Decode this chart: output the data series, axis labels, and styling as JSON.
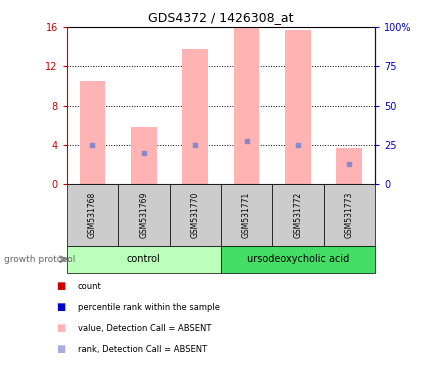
{
  "title": "GDS4372 / 1426308_at",
  "samples": [
    "GSM531768",
    "GSM531769",
    "GSM531770",
    "GSM531771",
    "GSM531772",
    "GSM531773"
  ],
  "bar_values": [
    10.5,
    5.8,
    13.8,
    16.0,
    15.7,
    3.7
  ],
  "dot_values": [
    4.0,
    3.2,
    4.0,
    4.4,
    4.0,
    2.1
  ],
  "bar_color": "#FFB3B3",
  "dot_color": "#8888CC",
  "left_ylim": [
    0,
    16
  ],
  "left_yticks": [
    0,
    4,
    8,
    12,
    16
  ],
  "right_ylim": [
    0,
    100
  ],
  "right_yticks": [
    0,
    25,
    50,
    75,
    100
  ],
  "left_ycolor": "#CC0000",
  "right_ycolor": "#0000CC",
  "control_color": "#BBFFBB",
  "treatment_color": "#44DD66",
  "sample_bg": "#CCCCCC",
  "legend_colors": [
    "#CC0000",
    "#0000CC",
    "#FFB3B3",
    "#AAAADD"
  ],
  "legend_labels": [
    "count",
    "percentile rank within the sample",
    "value, Detection Call = ABSENT",
    "rank, Detection Call = ABSENT"
  ],
  "bar_width": 0.5,
  "growth_protocol_arrow_color": "#888888"
}
